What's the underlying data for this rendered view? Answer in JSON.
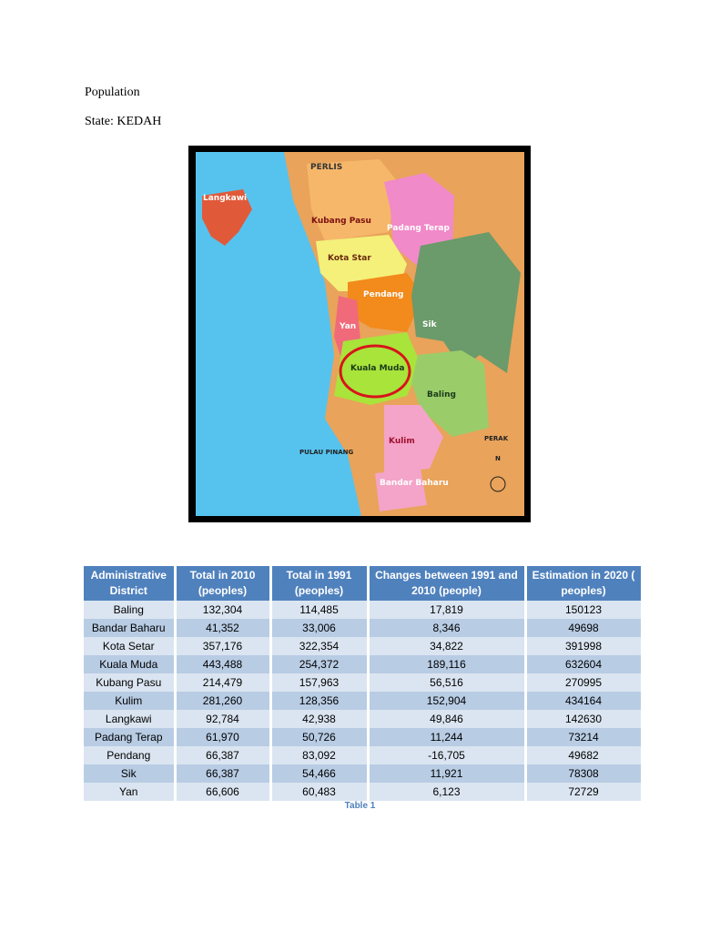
{
  "document": {
    "heading": "Population",
    "state_line": "State:  KEDAH"
  },
  "map": {
    "labels": [
      "PERLIS",
      "Langkawi",
      "Kubang Pasu",
      "Padang Terap",
      "Kota Star",
      "Pendang",
      "Yan",
      "Sik",
      "Kuala Muda",
      "Baling",
      "Kulim",
      "Bandar Baharu",
      "PERAK",
      "PULAU PINANG",
      "N"
    ]
  },
  "table": {
    "headers": [
      "Administrative District",
      "Total  in 2010 (peoples)",
      "Total  in 1991 (peoples)",
      "Changes between 1991 and 2010 (people)",
      "Estimation in 2020 ( peoples)"
    ],
    "rows": [
      [
        "Baling",
        "132,304",
        "114,485",
        "17,819",
        "150123"
      ],
      [
        "Bandar Baharu",
        "41,352",
        "33,006",
        "8,346",
        "49698"
      ],
      [
        "Kota Setar",
        "357,176",
        "322,354",
        "34,822",
        "391998"
      ],
      [
        "Kuala Muda",
        "443,488",
        "254,372",
        "189,116",
        "632604"
      ],
      [
        "Kubang Pasu",
        "214,479",
        "157,963",
        "56,516",
        "270995"
      ],
      [
        "Kulim",
        "281,260",
        "128,356",
        "152,904",
        "434164"
      ],
      [
        "Langkawi",
        "92,784",
        "42,938",
        "49,846",
        "142630"
      ],
      [
        "Padang Terap",
        "61,970",
        "50,726",
        "11,244",
        "73214"
      ],
      [
        "Pendang",
        "66,387",
        "83,092",
        "-16,705",
        "49682"
      ],
      [
        "Sik",
        "66,387",
        "54,466",
        "11,921",
        "78308"
      ],
      [
        "Yan",
        "66,606",
        "60,483",
        "6,123",
        "72729"
      ]
    ],
    "caption": "Table 1"
  }
}
